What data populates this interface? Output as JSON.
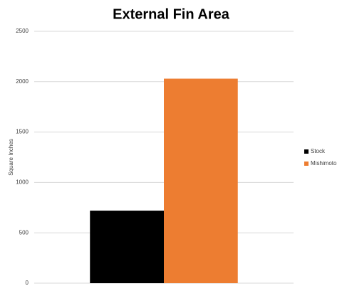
{
  "chart_data": {
    "type": "bar",
    "title": "External Fin Area",
    "y_label": "Square Inches",
    "categories": [
      null
    ],
    "series": [
      {
        "name": "Stock",
        "color": "#000000",
        "values": [
          720
        ]
      },
      {
        "name": "Mishimoto",
        "color": "#ed7d31",
        "values": [
          2030
        ]
      }
    ],
    "ylim": [
      0,
      2500
    ],
    "yticks": [
      0,
      500,
      1000,
      1500,
      2000,
      2500
    ],
    "grid": true,
    "legend": "right"
  }
}
